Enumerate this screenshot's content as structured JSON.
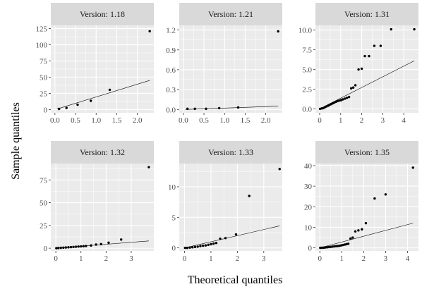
{
  "chart_data": {
    "type": "scatter",
    "xlabel": "Theoretical quantiles",
    "ylabel": "Sample quantiles",
    "facets": [
      {
        "label": "Version: 1.18",
        "xlim": [
          -0.1,
          2.4
        ],
        "ylim": [
          -5,
          130
        ],
        "xticks": [
          0,
          0.5,
          1,
          1.5,
          2
        ],
        "xtick_labels": [
          "0.0",
          "0.5",
          "1.0",
          "1.5",
          "2.0"
        ],
        "yticks": [
          0,
          25,
          50,
          75,
          100,
          125
        ],
        "ytick_labels": [
          "0",
          "25",
          "50",
          "75",
          "100",
          "125"
        ],
        "points": [
          [
            0.1,
            1.0
          ],
          [
            0.28,
            2.5
          ],
          [
            0.55,
            7.5
          ],
          [
            0.87,
            13.5
          ],
          [
            1.33,
            30.5
          ],
          [
            2.3,
            121.0
          ]
        ],
        "line": [
          [
            0.05,
            0.8
          ],
          [
            2.3,
            45.0
          ]
        ]
      },
      {
        "label": "Version: 1.21",
        "xlim": [
          -0.1,
          2.4
        ],
        "ylim": [
          -0.05,
          1.27
        ],
        "xticks": [
          0,
          0.5,
          1,
          1.5,
          2
        ],
        "xtick_labels": [
          "0.0",
          "0.5",
          "1.0",
          "1.5",
          "2.0"
        ],
        "yticks": [
          0,
          0.3,
          0.6,
          0.9,
          1.2
        ],
        "ytick_labels": [
          "0.0",
          "0.3",
          "0.6",
          "0.9",
          "1.2"
        ],
        "points": [
          [
            0.1,
            0.01
          ],
          [
            0.28,
            0.01
          ],
          [
            0.55,
            0.01
          ],
          [
            0.87,
            0.02
          ],
          [
            1.33,
            0.03
          ],
          [
            2.3,
            1.18
          ]
        ],
        "line": [
          [
            0.05,
            0.0
          ],
          [
            2.3,
            0.05
          ]
        ]
      },
      {
        "label": "Version: 1.31",
        "xlim": [
          -0.2,
          4.7
        ],
        "ylim": [
          -0.5,
          10.6
        ],
        "xticks": [
          0,
          1,
          2,
          3,
          4
        ],
        "xtick_labels": [
          "0",
          "1",
          "2",
          "3",
          "4"
        ],
        "yticks": [
          0,
          2.5,
          5,
          7.5,
          10
        ],
        "ytick_labels": [
          "0.0",
          "2.5",
          "5.0",
          "7.5",
          "10.0"
        ],
        "points": [
          [
            0.02,
            0.0
          ],
          [
            0.1,
            0.05
          ],
          [
            0.18,
            0.1
          ],
          [
            0.25,
            0.2
          ],
          [
            0.32,
            0.3
          ],
          [
            0.4,
            0.4
          ],
          [
            0.47,
            0.5
          ],
          [
            0.55,
            0.6
          ],
          [
            0.62,
            0.7
          ],
          [
            0.7,
            0.8
          ],
          [
            0.78,
            0.9
          ],
          [
            0.86,
            1.0
          ],
          [
            0.94,
            1.05
          ],
          [
            1.02,
            1.1
          ],
          [
            1.1,
            1.2
          ],
          [
            1.2,
            1.3
          ],
          [
            1.3,
            1.4
          ],
          [
            1.4,
            1.5
          ],
          [
            1.5,
            2.6
          ],
          [
            1.6,
            2.7
          ],
          [
            1.7,
            3.0
          ],
          [
            1.85,
            5.0
          ],
          [
            2.0,
            5.1
          ],
          [
            2.15,
            6.7
          ],
          [
            2.35,
            6.7
          ],
          [
            2.6,
            8.0
          ],
          [
            2.9,
            8.0
          ],
          [
            3.4,
            10.1
          ],
          [
            4.5,
            10.1
          ]
        ],
        "line": [
          [
            0.0,
            0.0
          ],
          [
            4.5,
            6.1
          ]
        ]
      },
      {
        "label": "Version: 1.32",
        "xlim": [
          -0.2,
          3.9
        ],
        "ylim": [
          -3,
          93
        ],
        "xticks": [
          0,
          1,
          2,
          3
        ],
        "xtick_labels": [
          "0",
          "1",
          "2",
          "3"
        ],
        "yticks": [
          0,
          25,
          50,
          75
        ],
        "ytick_labels": [
          "0",
          "25",
          "50",
          "75"
        ],
        "points": [
          [
            0.02,
            0.0
          ],
          [
            0.1,
            0.2
          ],
          [
            0.2,
            0.4
          ],
          [
            0.3,
            0.6
          ],
          [
            0.4,
            0.8
          ],
          [
            0.5,
            1.0
          ],
          [
            0.6,
            1.2
          ],
          [
            0.7,
            1.4
          ],
          [
            0.8,
            1.6
          ],
          [
            0.9,
            1.8
          ],
          [
            1.0,
            2.0
          ],
          [
            1.1,
            2.2
          ],
          [
            1.2,
            2.4
          ],
          [
            1.4,
            3.0
          ],
          [
            1.6,
            4.0
          ],
          [
            1.8,
            4.5
          ],
          [
            2.1,
            6.0
          ],
          [
            2.6,
            9.5
          ],
          [
            3.7,
            89.0
          ]
        ],
        "line": [
          [
            0.0,
            0.0
          ],
          [
            3.7,
            8.0
          ]
        ]
      },
      {
        "label": "Version: 1.33",
        "xlim": [
          -0.2,
          3.7
        ],
        "ylim": [
          -0.5,
          13.8
        ],
        "xticks": [
          0,
          1,
          2,
          3
        ],
        "xtick_labels": [
          "0",
          "1",
          "2",
          "3"
        ],
        "yticks": [
          0,
          5,
          10
        ],
        "ytick_labels": [
          "0",
          "5",
          "10"
        ],
        "points": [
          [
            0.02,
            0.0
          ],
          [
            0.1,
            0.0
          ],
          [
            0.2,
            0.05
          ],
          [
            0.3,
            0.1
          ],
          [
            0.4,
            0.15
          ],
          [
            0.5,
            0.2
          ],
          [
            0.6,
            0.3
          ],
          [
            0.7,
            0.35
          ],
          [
            0.8,
            0.4
          ],
          [
            0.9,
            0.5
          ],
          [
            1.0,
            0.6
          ],
          [
            1.1,
            0.7
          ],
          [
            1.2,
            0.8
          ],
          [
            1.35,
            1.5
          ],
          [
            1.55,
            1.6
          ],
          [
            1.95,
            2.2
          ],
          [
            2.45,
            8.5
          ],
          [
            3.6,
            12.9
          ]
        ],
        "line": [
          [
            0.0,
            0.0
          ],
          [
            3.6,
            3.6
          ]
        ]
      },
      {
        "label": "Version: 1.35",
        "xlim": [
          -0.2,
          4.5
        ],
        "ylim": [
          -1.5,
          41
        ],
        "xticks": [
          0,
          1,
          2,
          3,
          4
        ],
        "xtick_labels": [
          "0",
          "1",
          "2",
          "3",
          "4"
        ],
        "yticks": [
          0,
          10,
          20,
          30,
          40
        ],
        "ytick_labels": [
          "0",
          "10",
          "20",
          "30",
          "40"
        ],
        "points": [
          [
            0.02,
            0.0
          ],
          [
            0.1,
            0.05
          ],
          [
            0.18,
            0.1
          ],
          [
            0.26,
            0.2
          ],
          [
            0.34,
            0.3
          ],
          [
            0.42,
            0.4
          ],
          [
            0.5,
            0.5
          ],
          [
            0.58,
            0.6
          ],
          [
            0.66,
            0.7
          ],
          [
            0.74,
            0.8
          ],
          [
            0.82,
            0.9
          ],
          [
            0.9,
            1.0
          ],
          [
            0.98,
            1.2
          ],
          [
            1.06,
            1.4
          ],
          [
            1.14,
            1.6
          ],
          [
            1.22,
            1.8
          ],
          [
            1.3,
            2.0
          ],
          [
            1.4,
            4.5
          ],
          [
            1.5,
            5.0
          ],
          [
            1.62,
            8.0
          ],
          [
            1.76,
            8.5
          ],
          [
            1.92,
            9.0
          ],
          [
            2.1,
            12.0
          ],
          [
            2.5,
            24.0
          ],
          [
            3.0,
            26.0
          ],
          [
            4.25,
            39.0
          ]
        ],
        "line": [
          [
            0.0,
            0.0
          ],
          [
            4.25,
            12.0
          ]
        ]
      }
    ]
  }
}
